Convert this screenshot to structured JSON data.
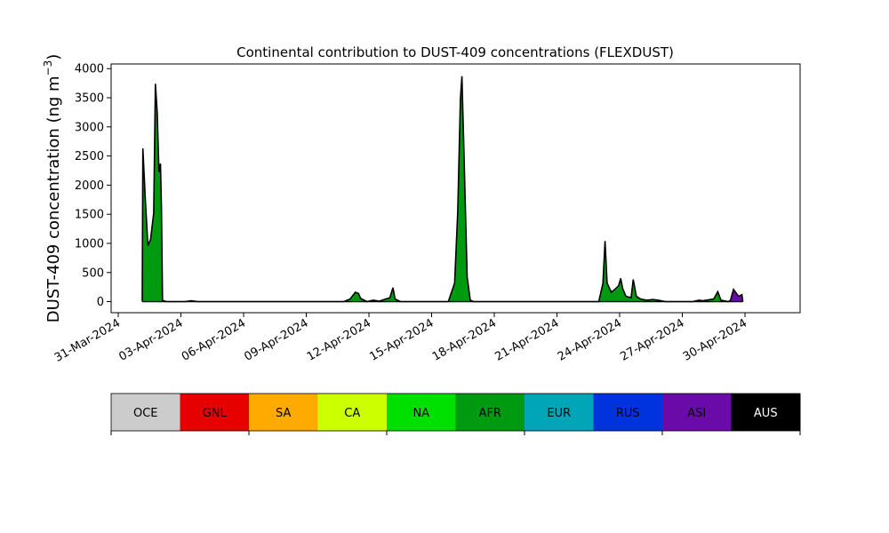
{
  "chart_data": {
    "type": "area",
    "title": "Continental contribution to DUST-409 concentrations (FLEXDUST)",
    "ylabel_main": "DUST-409 concentration (ng m",
    "ylabel_sup": "−3",
    "ylabel_close": ")",
    "xlabel": "",
    "ylim": [
      -190,
      4080
    ],
    "xlim_days_label": "2024-03-31 to 2024-05-02",
    "yticks": [
      0,
      500,
      1000,
      1500,
      2000,
      2500,
      3000,
      3500,
      4000
    ],
    "xticks": [
      {
        "label": "31-Mar-2024",
        "day": 0
      },
      {
        "label": "03-Apr-2024",
        "day": 3
      },
      {
        "label": "06-Apr-2024",
        "day": 6
      },
      {
        "label": "09-Apr-2024",
        "day": 9
      },
      {
        "label": "12-Apr-2024",
        "day": 12
      },
      {
        "label": "15-Apr-2024",
        "day": 15
      },
      {
        "label": "18-Apr-2024",
        "day": 18
      },
      {
        "label": "21-Apr-2024",
        "day": 21
      },
      {
        "label": "24-Apr-2024",
        "day": 24
      },
      {
        "label": "27-Apr-2024",
        "day": 27
      },
      {
        "label": "30-Apr-2024",
        "day": 30
      }
    ],
    "series": [
      {
        "name": "AFR",
        "color": "#009a10",
        "points": [
          [
            1.15,
            0
          ],
          [
            1.18,
            2600
          ],
          [
            1.3,
            1700
          ],
          [
            1.42,
            950
          ],
          [
            1.55,
            1050
          ],
          [
            1.7,
            1500
          ],
          [
            1.78,
            3700
          ],
          [
            1.87,
            3200
          ],
          [
            1.95,
            2200
          ],
          [
            2.02,
            2300
          ],
          [
            2.07,
            1600
          ],
          [
            2.12,
            20
          ],
          [
            2.3,
            0
          ],
          [
            3.2,
            0
          ],
          [
            3.5,
            15
          ],
          [
            3.8,
            0
          ],
          [
            10.8,
            0
          ],
          [
            11.1,
            40
          ],
          [
            11.35,
            150
          ],
          [
            11.5,
            130
          ],
          [
            11.6,
            50
          ],
          [
            11.9,
            0
          ],
          [
            12.2,
            20
          ],
          [
            12.5,
            5
          ],
          [
            12.8,
            40
          ],
          [
            13.0,
            60
          ],
          [
            13.15,
            220
          ],
          [
            13.25,
            40
          ],
          [
            13.5,
            0
          ],
          [
            15.8,
            0
          ],
          [
            16.1,
            300
          ],
          [
            16.25,
            1500
          ],
          [
            16.38,
            3400
          ],
          [
            16.45,
            3800
          ],
          [
            16.55,
            2500
          ],
          [
            16.7,
            400
          ],
          [
            16.85,
            20
          ],
          [
            17.0,
            0
          ],
          [
            23.0,
            0
          ],
          [
            23.2,
            300
          ],
          [
            23.3,
            1000
          ],
          [
            23.4,
            300
          ],
          [
            23.6,
            150
          ],
          [
            23.8,
            200
          ],
          [
            23.95,
            250
          ],
          [
            24.05,
            380
          ],
          [
            24.15,
            200
          ],
          [
            24.3,
            80
          ],
          [
            24.55,
            60
          ],
          [
            24.65,
            350
          ],
          [
            24.8,
            80
          ],
          [
            25.0,
            40
          ],
          [
            25.3,
            20
          ],
          [
            25.6,
            30
          ],
          [
            25.9,
            15
          ],
          [
            26.2,
            0
          ],
          [
            27.5,
            0
          ],
          [
            27.8,
            20
          ],
          [
            28.0,
            10
          ],
          [
            28.5,
            40
          ],
          [
            28.7,
            150
          ],
          [
            28.85,
            20
          ],
          [
            29.2,
            0
          ],
          [
            29.3,
            15
          ],
          [
            29.45,
            160
          ],
          [
            29.55,
            120
          ],
          [
            29.7,
            80
          ],
          [
            29.85,
            100
          ],
          [
            29.9,
            0
          ]
        ]
      },
      {
        "name": "ASI",
        "color": "#6a0aa8",
        "points": [
          [
            28.9,
            0
          ],
          [
            29.3,
            0
          ],
          [
            29.42,
            200
          ],
          [
            29.55,
            150
          ],
          [
            29.7,
            100
          ],
          [
            29.85,
            120
          ],
          [
            29.9,
            0
          ]
        ]
      },
      {
        "name": "AUS",
        "color": "#000000",
        "points": [
          [
            1.15,
            0
          ],
          [
            1.18,
            2630
          ],
          [
            1.3,
            1720
          ],
          [
            1.42,
            960
          ],
          [
            1.55,
            1070
          ],
          [
            1.7,
            1520
          ],
          [
            1.78,
            3740
          ],
          [
            1.87,
            3230
          ],
          [
            1.95,
            2220
          ],
          [
            2.02,
            2370
          ],
          [
            2.07,
            1620
          ],
          [
            2.12,
            20
          ],
          [
            2.3,
            0
          ],
          [
            3.2,
            0
          ],
          [
            3.5,
            15
          ],
          [
            3.8,
            0
          ],
          [
            10.8,
            0
          ],
          [
            11.1,
            45
          ],
          [
            11.35,
            160
          ],
          [
            11.5,
            140
          ],
          [
            11.6,
            55
          ],
          [
            11.9,
            0
          ],
          [
            12.2,
            25
          ],
          [
            12.5,
            8
          ],
          [
            12.8,
            45
          ],
          [
            13.0,
            65
          ],
          [
            13.15,
            240
          ],
          [
            13.25,
            45
          ],
          [
            13.5,
            0
          ],
          [
            15.8,
            0
          ],
          [
            16.1,
            320
          ],
          [
            16.25,
            1550
          ],
          [
            16.38,
            3480
          ],
          [
            16.45,
            3870
          ],
          [
            16.55,
            2550
          ],
          [
            16.7,
            420
          ],
          [
            16.85,
            25
          ],
          [
            17.0,
            0
          ],
          [
            23.0,
            0
          ],
          [
            23.2,
            310
          ],
          [
            23.3,
            1040
          ],
          [
            23.4,
            320
          ],
          [
            23.6,
            160
          ],
          [
            23.8,
            220
          ],
          [
            23.95,
            270
          ],
          [
            24.05,
            400
          ],
          [
            24.15,
            220
          ],
          [
            24.3,
            90
          ],
          [
            24.55,
            70
          ],
          [
            24.65,
            380
          ],
          [
            24.8,
            90
          ],
          [
            25.0,
            45
          ],
          [
            25.3,
            25
          ],
          [
            25.6,
            35
          ],
          [
            25.9,
            20
          ],
          [
            26.2,
            0
          ],
          [
            27.5,
            0
          ],
          [
            27.8,
            25
          ],
          [
            28.0,
            15
          ],
          [
            28.5,
            45
          ],
          [
            28.7,
            170
          ],
          [
            28.85,
            25
          ],
          [
            29.2,
            0
          ],
          [
            29.3,
            20
          ],
          [
            29.45,
            210
          ],
          [
            29.55,
            160
          ],
          [
            29.7,
            90
          ],
          [
            29.85,
            120
          ],
          [
            29.9,
            0
          ]
        ]
      }
    ],
    "legend": [
      {
        "name": "OCE",
        "color": "#cccccc",
        "text_color": "#000000"
      },
      {
        "name": "GNL",
        "color": "#e60000",
        "text_color": "#000000"
      },
      {
        "name": "SA",
        "color": "#ffaa00",
        "text_color": "#000000"
      },
      {
        "name": "CA",
        "color": "#ccff00",
        "text_color": "#000000"
      },
      {
        "name": "NA",
        "color": "#00e000",
        "text_color": "#000000"
      },
      {
        "name": "AFR",
        "color": "#009a10",
        "text_color": "#000000"
      },
      {
        "name": "EUR",
        "color": "#00a5b8",
        "text_color": "#000000"
      },
      {
        "name": "RUS",
        "color": "#0033dd",
        "text_color": "#000000"
      },
      {
        "name": "ASI",
        "color": "#6a0aa8",
        "text_color": "#000000"
      },
      {
        "name": "AUS",
        "color": "#000000",
        "text_color": "#ffffff"
      }
    ]
  }
}
